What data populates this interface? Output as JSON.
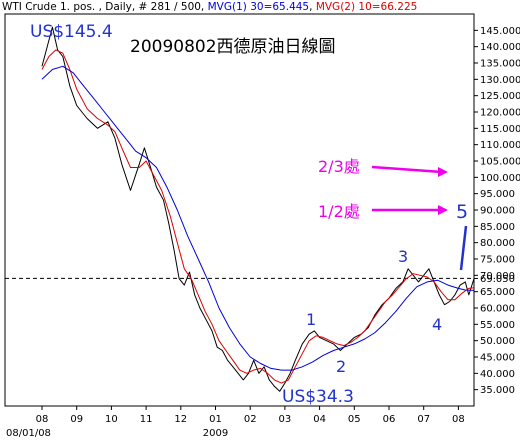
{
  "header": {
    "prefix": "WTI Crude 1. pos. , Daily, # 281 / 500, ",
    "mvg1": "MVG(1) 30=65.445",
    "sep": ", ",
    "mvg2": "MVG(2) 10=66.225"
  },
  "colors": {
    "price": "#000000",
    "mvg1": "#0000dd",
    "mvg2": "#dd0000",
    "annotation_magenta": "#ee00ee",
    "annotation_blue": "#2233cc",
    "dashed_line": "#000000"
  },
  "chart_data": {
    "type": "line",
    "title": "20090802西德原油日線圖",
    "xlabel": "",
    "ylabel": "",
    "ylim": [
      30,
      150
    ],
    "y_ticks": [
      "35.000",
      "40.000",
      "45.000",
      "50.000",
      "55.000",
      "60.000",
      "65.000",
      "69.050",
      "70.000",
      "75.000",
      "80.000",
      "85.000",
      "90.000",
      "95.000",
      "100.000",
      "105.000",
      "110.000",
      "115.000",
      "120.000",
      "125.000",
      "130.000",
      "135.000",
      "140.000",
      "145.000"
    ],
    "x_month_labels": [
      "08",
      "09",
      "10",
      "11",
      "12",
      "01",
      "02",
      "03",
      "04",
      "05",
      "06",
      "07",
      "08"
    ],
    "x_sub_labels": [
      "08/01/08",
      "2009"
    ],
    "reference_line": 69.05,
    "series": [
      {
        "name": "price",
        "values": [
          [
            0,
            134
          ],
          [
            0.15,
            140
          ],
          [
            0.3,
            146
          ],
          [
            0.45,
            139
          ],
          [
            0.6,
            137
          ],
          [
            0.8,
            128
          ],
          [
            1.0,
            122
          ],
          [
            1.3,
            118
          ],
          [
            1.6,
            115
          ],
          [
            1.9,
            117
          ],
          [
            2.1,
            112
          ],
          [
            2.3,
            104
          ],
          [
            2.55,
            96
          ],
          [
            2.8,
            104
          ],
          [
            2.95,
            109
          ],
          [
            3.1,
            104
          ],
          [
            3.3,
            97
          ],
          [
            3.5,
            93
          ],
          [
            3.65,
            86
          ],
          [
            3.8,
            78
          ],
          [
            3.95,
            69
          ],
          [
            4.1,
            67
          ],
          [
            4.25,
            71
          ],
          [
            4.4,
            64
          ],
          [
            4.55,
            60
          ],
          [
            4.7,
            57
          ],
          [
            4.9,
            53
          ],
          [
            5.05,
            48
          ],
          [
            5.2,
            47
          ],
          [
            5.35,
            44
          ],
          [
            5.5,
            42
          ],
          [
            5.65,
            40
          ],
          [
            5.8,
            38
          ],
          [
            5.95,
            40
          ],
          [
            6.1,
            44
          ],
          [
            6.25,
            40
          ],
          [
            6.4,
            42
          ],
          [
            6.55,
            38
          ],
          [
            6.7,
            36
          ],
          [
            6.85,
            34.5
          ],
          [
            7.0,
            37
          ],
          [
            7.15,
            40
          ],
          [
            7.3,
            44
          ],
          [
            7.5,
            49
          ],
          [
            7.7,
            52
          ],
          [
            7.85,
            53
          ],
          [
            8.0,
            51
          ],
          [
            8.2,
            50
          ],
          [
            8.4,
            49
          ],
          [
            8.6,
            47
          ],
          [
            8.8,
            49
          ],
          [
            9.0,
            51
          ],
          [
            9.2,
            52
          ],
          [
            9.4,
            54
          ],
          [
            9.6,
            58
          ],
          [
            9.8,
            61
          ],
          [
            10.0,
            63
          ],
          [
            10.2,
            66
          ],
          [
            10.4,
            68
          ],
          [
            10.55,
            72
          ],
          [
            10.7,
            70
          ],
          [
            10.85,
            68
          ],
          [
            11.0,
            70
          ],
          [
            11.15,
            72
          ],
          [
            11.3,
            68
          ],
          [
            11.45,
            64
          ],
          [
            11.6,
            61
          ],
          [
            11.75,
            62
          ],
          [
            11.9,
            64
          ],
          [
            12.05,
            67
          ],
          [
            12.2,
            68
          ],
          [
            12.3,
            64
          ],
          [
            12.45,
            69
          ]
        ]
      },
      {
        "name": "MVG(2) 10",
        "values": [
          [
            0,
            133
          ],
          [
            0.2,
            137
          ],
          [
            0.4,
            139
          ],
          [
            0.6,
            138
          ],
          [
            0.8,
            133
          ],
          [
            1.0,
            127
          ],
          [
            1.3,
            121
          ],
          [
            1.6,
            118
          ],
          [
            1.9,
            116
          ],
          [
            2.1,
            114
          ],
          [
            2.3,
            109
          ],
          [
            2.55,
            103
          ],
          [
            2.8,
            103
          ],
          [
            3.0,
            105
          ],
          [
            3.2,
            101
          ],
          [
            3.45,
            96
          ],
          [
            3.7,
            88
          ],
          [
            3.9,
            80
          ],
          [
            4.1,
            72
          ],
          [
            4.3,
            69
          ],
          [
            4.5,
            64
          ],
          [
            4.7,
            59
          ],
          [
            4.9,
            55
          ],
          [
            5.1,
            50
          ],
          [
            5.3,
            47
          ],
          [
            5.5,
            44
          ],
          [
            5.7,
            41
          ],
          [
            5.9,
            40
          ],
          [
            6.1,
            41
          ],
          [
            6.3,
            41.5
          ],
          [
            6.5,
            40
          ],
          [
            6.7,
            38
          ],
          [
            6.9,
            37
          ],
          [
            7.1,
            38
          ],
          [
            7.3,
            42
          ],
          [
            7.5,
            46
          ],
          [
            7.7,
            50
          ],
          [
            7.9,
            51.5
          ],
          [
            8.1,
            51
          ],
          [
            8.3,
            50
          ],
          [
            8.5,
            49
          ],
          [
            8.7,
            48.5
          ],
          [
            8.9,
            49.5
          ],
          [
            9.1,
            51
          ],
          [
            9.3,
            53
          ],
          [
            9.5,
            56
          ],
          [
            9.7,
            59
          ],
          [
            9.9,
            62
          ],
          [
            10.1,
            64
          ],
          [
            10.3,
            66.5
          ],
          [
            10.5,
            69
          ],
          [
            10.7,
            70.5
          ],
          [
            10.9,
            70
          ],
          [
            11.1,
            69.5
          ],
          [
            11.3,
            68
          ],
          [
            11.5,
            65
          ],
          [
            11.7,
            62.5
          ],
          [
            11.9,
            62.5
          ],
          [
            12.1,
            64.5
          ],
          [
            12.3,
            66
          ],
          [
            12.45,
            66.2
          ]
        ]
      },
      {
        "name": "MVG(1) 30",
        "values": [
          [
            0,
            130
          ],
          [
            0.3,
            133
          ],
          [
            0.6,
            134
          ],
          [
            0.9,
            132
          ],
          [
            1.2,
            128
          ],
          [
            1.5,
            124
          ],
          [
            1.8,
            120
          ],
          [
            2.1,
            116
          ],
          [
            2.4,
            112
          ],
          [
            2.7,
            108
          ],
          [
            3.0,
            106
          ],
          [
            3.3,
            103
          ],
          [
            3.6,
            97
          ],
          [
            3.9,
            90
          ],
          [
            4.2,
            82
          ],
          [
            4.5,
            75
          ],
          [
            4.8,
            68
          ],
          [
            5.1,
            60
          ],
          [
            5.4,
            54
          ],
          [
            5.7,
            49
          ],
          [
            6.0,
            45
          ],
          [
            6.3,
            43
          ],
          [
            6.6,
            41.5
          ],
          [
            6.9,
            41
          ],
          [
            7.2,
            41
          ],
          [
            7.5,
            42
          ],
          [
            7.8,
            43.5
          ],
          [
            8.1,
            45.5
          ],
          [
            8.4,
            47
          ],
          [
            8.7,
            48
          ],
          [
            9.0,
            49
          ],
          [
            9.3,
            50.5
          ],
          [
            9.6,
            52.5
          ],
          [
            9.9,
            55.5
          ],
          [
            10.2,
            59
          ],
          [
            10.5,
            63
          ],
          [
            10.8,
            66.5
          ],
          [
            11.1,
            68
          ],
          [
            11.4,
            68.5
          ],
          [
            11.7,
            67
          ],
          [
            12.0,
            66
          ],
          [
            12.2,
            65.5
          ],
          [
            12.45,
            65.4
          ]
        ]
      }
    ],
    "annotations": [
      {
        "text": "US$145.4",
        "color": "#2233cc"
      },
      {
        "text": "US$34.3",
        "color": "#2233cc"
      },
      {
        "text": "1",
        "color": "#2233cc"
      },
      {
        "text": "2",
        "color": "#2233cc"
      },
      {
        "text": "3",
        "color": "#2233cc"
      },
      {
        "text": "4",
        "color": "#2233cc"
      },
      {
        "text": "5",
        "color": "#2233cc"
      },
      {
        "text": "2/3處",
        "color": "#ee00ee"
      },
      {
        "text": "1/2處",
        "color": "#ee00ee"
      }
    ]
  }
}
